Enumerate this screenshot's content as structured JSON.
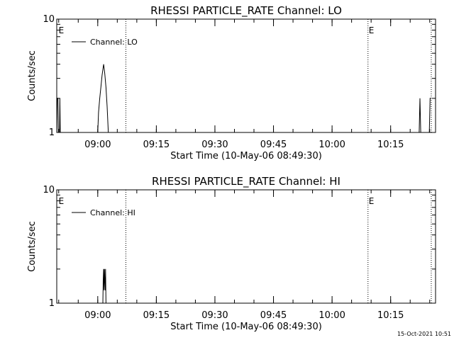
{
  "footer": {
    "timestamp": "15-Oct-2021 10:51"
  },
  "chart_data": [
    {
      "type": "line",
      "title": "RHESSI PARTICLE_RATE Channel: LO",
      "xlabel": "Start Time (10-May-06 08:49:30)",
      "ylabel": "Counts/sec",
      "yscale": "log",
      "ylim": [
        1,
        10
      ],
      "xlim_minutes": [
        0,
        97
      ],
      "xticks": [
        {
          "label": "09:00",
          "min": 10.5
        },
        {
          "label": "09:15",
          "min": 25.5
        },
        {
          "label": "09:30",
          "min": 40.5
        },
        {
          "label": "09:45",
          "min": 55.5
        },
        {
          "label": "10:00",
          "min": 70.5
        },
        {
          "label": "10:15",
          "min": 85.5
        }
      ],
      "yticks": [
        {
          "label": "1",
          "value": 1
        },
        {
          "label": "10",
          "value": 10
        }
      ],
      "legend": {
        "position": "top-left",
        "entries": [
          "Channel: LO"
        ]
      },
      "markers": [
        {
          "label": "E",
          "min": 0.3
        },
        {
          "label": "E",
          "min": 79.7
        }
      ],
      "vlines_min": [
        17.7,
        79.7,
        95.9
      ],
      "series": [
        {
          "name": "Channel: LO",
          "points": [
            [
              0,
              1
            ],
            [
              0.1,
              2
            ],
            [
              0.3,
              2
            ],
            [
              0.4,
              1
            ],
            [
              0.7,
              1
            ],
            [
              0.8,
              2
            ],
            [
              0.9,
              1
            ],
            [
              10.5,
              1
            ],
            [
              10.7,
              1.5
            ],
            [
              11,
              2
            ],
            [
              11.3,
              2.5
            ],
            [
              11.6,
              3.2
            ],
            [
              12,
              4
            ],
            [
              12.3,
              3.3
            ],
            [
              12.6,
              2.5
            ],
            [
              12.9,
              1.7
            ],
            [
              13.2,
              1
            ],
            [
              92.8,
              1
            ],
            [
              93,
              2
            ],
            [
              93.2,
              1
            ],
            [
              95.4,
              1
            ],
            [
              95.6,
              2
            ],
            [
              95.8,
              2
            ]
          ]
        }
      ]
    },
    {
      "type": "line",
      "title": "RHESSI PARTICLE_RATE Channel: HI",
      "xlabel": "Start Time (10-May-06 08:49:30)",
      "ylabel": "Counts/sec",
      "yscale": "log",
      "ylim": [
        1,
        10
      ],
      "xlim_minutes": [
        0,
        97
      ],
      "xticks": [
        {
          "label": "09:00",
          "min": 10.5
        },
        {
          "label": "09:15",
          "min": 25.5
        },
        {
          "label": "09:30",
          "min": 40.5
        },
        {
          "label": "09:45",
          "min": 55.5
        },
        {
          "label": "10:00",
          "min": 70.5
        },
        {
          "label": "10:15",
          "min": 85.5
        }
      ],
      "yticks": [
        {
          "label": "1",
          "value": 1
        },
        {
          "label": "10",
          "value": 10
        }
      ],
      "legend": {
        "position": "top-left",
        "entries": [
          "Channel: HI"
        ]
      },
      "markers": [
        {
          "label": "E",
          "min": 0.3
        },
        {
          "label": "E",
          "min": 79.7
        }
      ],
      "vlines_min": [
        17.7,
        79.7,
        95.9
      ],
      "series": [
        {
          "name": "Channel: HI",
          "points": [
            [
              11.8,
              1
            ],
            [
              11.9,
              1.6
            ],
            [
              12,
              2
            ],
            [
              12.1,
              1.3
            ],
            [
              12.2,
              2
            ],
            [
              12.3,
              1.6
            ],
            [
              12.4,
              1.3
            ],
            [
              12.5,
              2
            ],
            [
              12.6,
              1
            ]
          ]
        }
      ]
    }
  ]
}
